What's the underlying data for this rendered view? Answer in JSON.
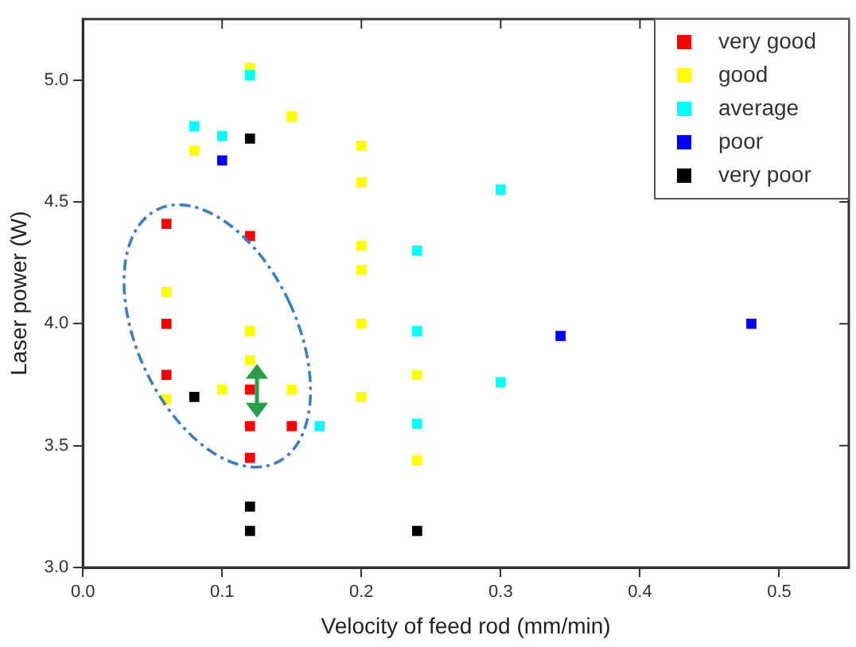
{
  "chart_data": {
    "type": "scatter",
    "xlabel": "Velocity of feed rod (mm/min)",
    "ylabel": "Laser power (W)",
    "xlim": [
      0,
      0.55
    ],
    "ylim": [
      3.0,
      5.25
    ],
    "xticks": [
      {
        "value": 0,
        "label": "0.0"
      },
      {
        "value": 0.1,
        "label": "0.1"
      },
      {
        "value": 0.2,
        "label": "0.2"
      },
      {
        "value": 0.3,
        "label": "0.3"
      },
      {
        "value": 0.4,
        "label": "0.4"
      },
      {
        "value": 0.5,
        "label": "0.5"
      }
    ],
    "yticks": [
      {
        "value": 3,
        "label": "3.0"
      },
      {
        "value": 3.5,
        "label": "3.5"
      },
      {
        "value": 4,
        "label": "4.0"
      },
      {
        "value": 4.5,
        "label": "4.5"
      },
      {
        "value": 5,
        "label": "5.0"
      }
    ],
    "grid": false,
    "legend": "top right",
    "marker": "square",
    "series": [
      {
        "name": "very good",
        "color": "#ff0000",
        "x": [
          0.06,
          0.12,
          0.06,
          0.06,
          0.12,
          0.12,
          0.15,
          0.12
        ],
        "values": [
          4.41,
          4.36,
          4.0,
          3.79,
          3.73,
          3.58,
          3.58,
          3.45
        ]
      },
      {
        "name": "good",
        "color": "#ffff00",
        "x": [
          0.12,
          0.15,
          0.08,
          0.2,
          0.2,
          0.2,
          0.2,
          0.06,
          0.12,
          0.12,
          0.06,
          0.1,
          0.15,
          0.2,
          0.2,
          0.24,
          0.24
        ],
        "values": [
          5.05,
          4.85,
          4.71,
          4.73,
          4.58,
          4.32,
          4.22,
          4.13,
          3.97,
          3.85,
          3.69,
          3.73,
          3.73,
          4.0,
          3.7,
          3.79,
          3.44
        ]
      },
      {
        "name": "average",
        "color": "#00ffff",
        "x": [
          0.12,
          0.08,
          0.1,
          0.3,
          0.24,
          0.24,
          0.3,
          0.17,
          0.24
        ],
        "values": [
          5.02,
          4.81,
          4.77,
          4.55,
          4.3,
          3.97,
          3.76,
          3.58,
          3.59
        ]
      },
      {
        "name": "poor",
        "color": "#0000ff",
        "x": [
          0.1,
          0.343,
          0.48
        ],
        "values": [
          4.67,
          3.95,
          4.0
        ]
      },
      {
        "name": "very poor",
        "color": "#000000",
        "x": [
          0.12,
          0.08,
          0.12,
          0.12,
          0.24
        ],
        "values": [
          4.76,
          3.7,
          3.25,
          3.15,
          3.15
        ]
      }
    ]
  }
}
